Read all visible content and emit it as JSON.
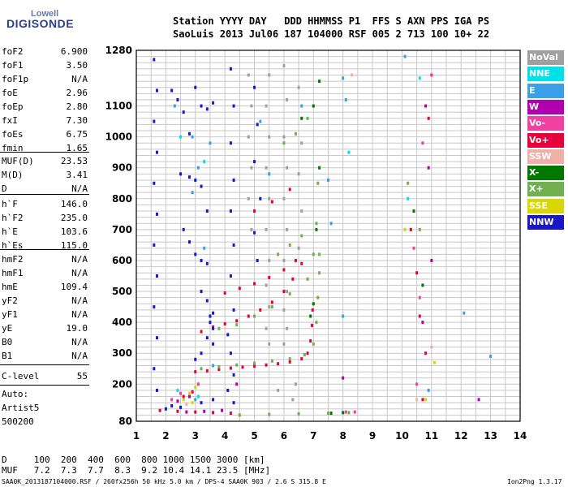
{
  "logo": {
    "line1": "Lowell",
    "line2": "DIGISONDE"
  },
  "header": {
    "row1": "Station YYYY DAY   DDD HHMMSS P1  FFS S AXN PPS IGA PS",
    "row2": "SaoLuis 2013 Jul06 187 104000 RSF 005 2 713 100 10+ 22"
  },
  "params_group1": [
    {
      "name": "foF2",
      "value": "6.900"
    },
    {
      "name": "foF1",
      "value": "3.50"
    },
    {
      "name": "foF1p",
      "value": "N/A"
    },
    {
      "name": "foE",
      "value": "2.96"
    },
    {
      "name": "foEp",
      "value": "2.80"
    },
    {
      "name": "fxI",
      "value": "7.30"
    },
    {
      "name": "foEs",
      "value": "6.75"
    },
    {
      "name": "fmin",
      "value": "1.65"
    }
  ],
  "params_group2": [
    {
      "name": "MUF(D)",
      "value": "23.53"
    },
    {
      "name": "M(D)",
      "value": "3.41"
    },
    {
      "name": "D",
      "value": "N/A"
    }
  ],
  "params_group3": [
    {
      "name": "h`F",
      "value": "146.0"
    },
    {
      "name": "h`F2",
      "value": "235.0"
    },
    {
      "name": "h`E",
      "value": "103.6"
    },
    {
      "name": "h`Es",
      "value": "115.0"
    }
  ],
  "params_group4": [
    {
      "name": "hmF2",
      "value": "N/A"
    },
    {
      "name": "hmF1",
      "value": "N/A"
    },
    {
      "name": "hmE",
      "value": "109.4"
    },
    {
      "name": "yF2",
      "value": "N/A"
    },
    {
      "name": "yF1",
      "value": "N/A"
    },
    {
      "name": "yE",
      "value": "19.0"
    },
    {
      "name": "B0",
      "value": "N/A"
    },
    {
      "name": "B1",
      "value": "N/A"
    }
  ],
  "clevel": {
    "name": "C-level",
    "value": "55"
  },
  "auto": {
    "line1": "Auto:",
    "line2": "Artist5",
    "line3": "500200"
  },
  "legend": [
    {
      "label": "NoVal",
      "color": "#a0a0a0"
    },
    {
      "label": "NNE",
      "color": "#00e0e8"
    },
    {
      "label": "E",
      "color": "#3aa0e8"
    },
    {
      "label": "W",
      "color": "#b000b0"
    },
    {
      "label": "Vo-",
      "color": "#f040a0"
    },
    {
      "label": "Vo+",
      "color": "#e8003a"
    },
    {
      "label": "SSW",
      "color": "#f0b0a8"
    },
    {
      "label": "X-",
      "color": "#007800"
    },
    {
      "label": "X+",
      "color": "#70b050"
    },
    {
      "label": "SSE",
      "color": "#d8d800"
    },
    {
      "label": "NNW",
      "color": "#1818c8"
    }
  ],
  "bottom": {
    "d_row": "D     100  200  400  600  800 1000 1500 3000 [km]",
    "muf_row": "MUF   7.2  7.3  7.7  8.3  9.2 10.4 14.1 23.5 [MHz]"
  },
  "footer": {
    "left": "SAA0K_2013187104000.RSF / 260fx256h 50 kHz 5.0 km / DPS-4 SAA0K 903 / 2.6 S 315.8 E",
    "right": "Ion2Png 1.3.17"
  },
  "chart_data": {
    "type": "scatter",
    "xlim": [
      1,
      14
    ],
    "ylim": [
      80,
      1280
    ],
    "x_ticks": [
      "1",
      "2",
      "3",
      "4",
      "5",
      "6",
      "7",
      "8",
      "9",
      "10",
      "11",
      "12",
      "13",
      "14"
    ],
    "y_ticks": [
      {
        "v": 80,
        "l": "80"
      },
      {
        "v": 200,
        "l": "200"
      },
      {
        "v": 300,
        "l": "300"
      },
      {
        "v": 400,
        "l": "400"
      },
      {
        "v": 500,
        "l": "500"
      },
      {
        "v": 600,
        "l": "600"
      },
      {
        "v": 700,
        "l": "700"
      },
      {
        "v": 800,
        "l": "800"
      },
      {
        "v": 900,
        "l": "900"
      },
      {
        "v": 1000,
        "l": "1000"
      },
      {
        "v": 1100,
        "l": "1100"
      },
      {
        "v": 1280,
        "l": "1280"
      }
    ],
    "grid": true,
    "series": [
      {
        "name": "Vo+",
        "color": "#e8003a",
        "points": [
          [
            3.0,
            240
          ],
          [
            3.4,
            243
          ],
          [
            3.8,
            248
          ],
          [
            4.2,
            252
          ],
          [
            4.6,
            255
          ],
          [
            5.0,
            258
          ],
          [
            5.4,
            262
          ],
          [
            5.8,
            266
          ],
          [
            6.2,
            272
          ],
          [
            6.6,
            282
          ],
          [
            6.8,
            300
          ],
          [
            6.9,
            340
          ],
          [
            6.95,
            390
          ],
          [
            6.97,
            440
          ],
          [
            3.2,
            370
          ],
          [
            3.6,
            385
          ],
          [
            4.0,
            395
          ],
          [
            4.4,
            405
          ],
          [
            4.8,
            420
          ],
          [
            5.2,
            440
          ],
          [
            5.6,
            465
          ],
          [
            6.0,
            500
          ],
          [
            6.3,
            540
          ],
          [
            6.6,
            590
          ],
          [
            4.0,
            495
          ],
          [
            4.5,
            510
          ],
          [
            5.0,
            525
          ],
          [
            5.5,
            545
          ],
          [
            6.0,
            570
          ],
          [
            6.4,
            600
          ],
          [
            5.0,
            760
          ],
          [
            5.6,
            790
          ],
          [
            6.2,
            830
          ],
          [
            1.8,
            115
          ],
          [
            2.4,
            112
          ],
          [
            3.0,
            110
          ],
          [
            3.6,
            108
          ],
          [
            4.2,
            106
          ],
          [
            10.3,
            700
          ],
          [
            10.5,
            560
          ],
          [
            10.6,
            420
          ],
          [
            10.8,
            300
          ],
          [
            10.9,
            1060
          ],
          [
            10.7,
            150
          ],
          [
            2.6,
            160
          ],
          [
            2.9,
            175
          ]
        ]
      },
      {
        "name": "X+",
        "color": "#70b050",
        "points": [
          [
            3.2,
            250
          ],
          [
            3.8,
            256
          ],
          [
            4.4,
            262
          ],
          [
            5.0,
            268
          ],
          [
            5.6,
            275
          ],
          [
            6.2,
            282
          ],
          [
            6.7,
            295
          ],
          [
            7.0,
            330
          ],
          [
            7.1,
            400
          ],
          [
            7.15,
            480
          ],
          [
            7.2,
            560
          ],
          [
            7.2,
            620
          ],
          [
            3.8,
            380
          ],
          [
            4.4,
            392
          ],
          [
            5.0,
            420
          ],
          [
            5.6,
            450
          ],
          [
            6.2,
            492
          ],
          [
            6.8,
            540
          ],
          [
            7.0,
            620
          ],
          [
            7.1,
            720
          ],
          [
            7.15,
            850
          ],
          [
            5.8,
            620
          ],
          [
            6.2,
            650
          ],
          [
            6.6,
            680
          ],
          [
            6.0,
            980
          ],
          [
            6.4,
            1010
          ],
          [
            6.8,
            1060
          ],
          [
            4.5,
            100
          ],
          [
            5.5,
            102
          ],
          [
            6.5,
            104
          ],
          [
            7.5,
            106
          ],
          [
            8.2,
            108
          ],
          [
            10.2,
            850
          ],
          [
            10.6,
            700
          ]
        ]
      },
      {
        "name": "X-",
        "color": "#007800",
        "points": [
          [
            6.6,
            1060
          ],
          [
            7.0,
            1100
          ],
          [
            7.2,
            1180
          ],
          [
            7.2,
            900
          ],
          [
            7.1,
            700
          ],
          [
            7.0,
            460
          ],
          [
            6.9,
            420
          ],
          [
            10.4,
            760
          ],
          [
            10.7,
            520
          ],
          [
            11.0,
            1200
          ],
          [
            7.6,
            106
          ],
          [
            8.0,
            108
          ]
        ]
      },
      {
        "name": "NNW",
        "color": "#1818c8",
        "points": [
          [
            1.6,
            1250
          ],
          [
            1.7,
            1150
          ],
          [
            1.6,
            1050
          ],
          [
            1.7,
            950
          ],
          [
            1.6,
            850
          ],
          [
            1.7,
            750
          ],
          [
            1.6,
            650
          ],
          [
            1.7,
            550
          ],
          [
            1.6,
            450
          ],
          [
            1.7,
            350
          ],
          [
            1.6,
            250
          ],
          [
            1.7,
            180
          ],
          [
            2.2,
            1150
          ],
          [
            2.4,
            1120
          ],
          [
            2.6,
            1080
          ],
          [
            2.8,
            1010
          ],
          [
            3.0,
            1160
          ],
          [
            3.2,
            1100
          ],
          [
            3.4,
            1090
          ],
          [
            3.6,
            1110
          ],
          [
            2.5,
            880
          ],
          [
            2.8,
            870
          ],
          [
            3.0,
            860
          ],
          [
            3.2,
            840
          ],
          [
            3.4,
            760
          ],
          [
            2.6,
            700
          ],
          [
            2.8,
            660
          ],
          [
            3.0,
            620
          ],
          [
            3.2,
            600
          ],
          [
            3.4,
            590
          ],
          [
            3.2,
            500
          ],
          [
            3.4,
            470
          ],
          [
            3.6,
            430
          ],
          [
            3.5,
            400
          ],
          [
            3.6,
            380
          ],
          [
            3.4,
            350
          ],
          [
            3.6,
            330
          ],
          [
            3.0,
            280
          ],
          [
            3.2,
            300
          ],
          [
            3.5,
            420
          ],
          [
            3.6,
            150
          ],
          [
            3.2,
            140
          ],
          [
            4.2,
            1220
          ],
          [
            4.3,
            1100
          ],
          [
            4.2,
            980
          ],
          [
            4.3,
            860
          ],
          [
            4.2,
            760
          ],
          [
            4.3,
            650
          ],
          [
            4.2,
            550
          ],
          [
            4.3,
            440
          ],
          [
            4.1,
            360
          ],
          [
            4.2,
            300
          ],
          [
            4.3,
            230
          ],
          [
            4.1,
            180
          ],
          [
            4.3,
            140
          ],
          [
            5.0,
            1160
          ],
          [
            5.1,
            1040
          ],
          [
            5.0,
            920
          ],
          [
            5.2,
            800
          ],
          [
            5.0,
            690
          ],
          [
            5.1,
            600
          ],
          [
            2.0,
            120
          ],
          [
            2.2,
            130
          ],
          [
            2.5,
            125
          ]
        ]
      },
      {
        "name": "E",
        "color": "#3aa0e8",
        "points": [
          [
            2.3,
            1100
          ],
          [
            2.9,
            1000
          ],
          [
            3.1,
            900
          ],
          [
            3.5,
            980
          ],
          [
            2.9,
            820
          ],
          [
            3.3,
            640
          ],
          [
            5.2,
            1050
          ],
          [
            5.5,
            880
          ],
          [
            6.6,
            1100
          ],
          [
            7.5,
            860
          ],
          [
            7.6,
            720
          ],
          [
            8.0,
            1190
          ],
          [
            8.1,
            1120
          ],
          [
            8.0,
            420
          ],
          [
            10.1,
            1260
          ],
          [
            10.9,
            180
          ],
          [
            13.0,
            290
          ],
          [
            12.1,
            430
          ],
          [
            3.6,
            260
          ],
          [
            3.0,
            150
          ]
        ]
      },
      {
        "name": "NoVal",
        "color": "#a0a0a0",
        "points": [
          [
            5.5,
            1200
          ],
          [
            5.4,
            1100
          ],
          [
            5.5,
            1000
          ],
          [
            5.4,
            900
          ],
          [
            5.5,
            800
          ],
          [
            5.4,
            700
          ],
          [
            5.5,
            600
          ],
          [
            5.4,
            520
          ],
          [
            5.5,
            450
          ],
          [
            5.4,
            380
          ],
          [
            5.5,
            330
          ],
          [
            6.0,
            1230
          ],
          [
            6.1,
            1120
          ],
          [
            6.0,
            1000
          ],
          [
            6.1,
            900
          ],
          [
            6.0,
            800
          ],
          [
            6.1,
            700
          ],
          [
            6.0,
            600
          ],
          [
            6.1,
            500
          ],
          [
            6.0,
            440
          ],
          [
            6.1,
            380
          ],
          [
            6.0,
            330
          ],
          [
            6.5,
            1160
          ],
          [
            6.6,
            980
          ],
          [
            6.5,
            880
          ],
          [
            6.6,
            760
          ],
          [
            6.5,
            640
          ],
          [
            4.8,
            1200
          ],
          [
            4.9,
            1100
          ],
          [
            4.8,
            1000
          ],
          [
            4.9,
            900
          ],
          [
            4.8,
            800
          ],
          [
            4.9,
            700
          ],
          [
            6.3,
            150
          ],
          [
            6.4,
            200
          ],
          [
            5.8,
            180
          ]
        ]
      },
      {
        "name": "W",
        "color": "#b000b0",
        "points": [
          [
            2.7,
            110
          ],
          [
            3.3,
            112
          ],
          [
            3.9,
            115
          ],
          [
            2.4,
            145
          ],
          [
            2.8,
            160
          ],
          [
            10.8,
            1100
          ],
          [
            10.9,
            900
          ],
          [
            11.0,
            600
          ],
          [
            10.7,
            400
          ],
          [
            12.6,
            150
          ],
          [
            8.0,
            220
          ],
          [
            4.4,
            200
          ]
        ]
      },
      {
        "name": "Vo-",
        "color": "#f040a0",
        "points": [
          [
            10.4,
            640
          ],
          [
            10.6,
            480
          ],
          [
            11.0,
            1200
          ],
          [
            10.7,
            980
          ],
          [
            10.5,
            200
          ],
          [
            2.5,
            170
          ],
          [
            3.1,
            200
          ],
          [
            2.2,
            150
          ],
          [
            8.1,
            110
          ],
          [
            8.4,
            110
          ]
        ]
      },
      {
        "name": "SSE",
        "color": "#d8d800",
        "points": [
          [
            2.8,
            170
          ],
          [
            3.0,
            190
          ],
          [
            2.6,
            150
          ],
          [
            10.1,
            700
          ],
          [
            10.8,
            150
          ],
          [
            11.1,
            270
          ],
          [
            2.9,
            140
          ]
        ]
      },
      {
        "name": "NNE",
        "color": "#00e0e8",
        "points": [
          [
            2.5,
            1000
          ],
          [
            3.3,
            920
          ],
          [
            10.2,
            800
          ],
          [
            10.6,
            1190
          ],
          [
            2.4,
            180
          ],
          [
            3.1,
            160
          ],
          [
            8.2,
            950
          ]
        ]
      },
      {
        "name": "SSW",
        "color": "#f0b0a8",
        "points": [
          [
            10.5,
            150
          ],
          [
            11.0,
            320
          ],
          [
            2.7,
            135
          ],
          [
            8.3,
            1200
          ]
        ]
      }
    ]
  }
}
